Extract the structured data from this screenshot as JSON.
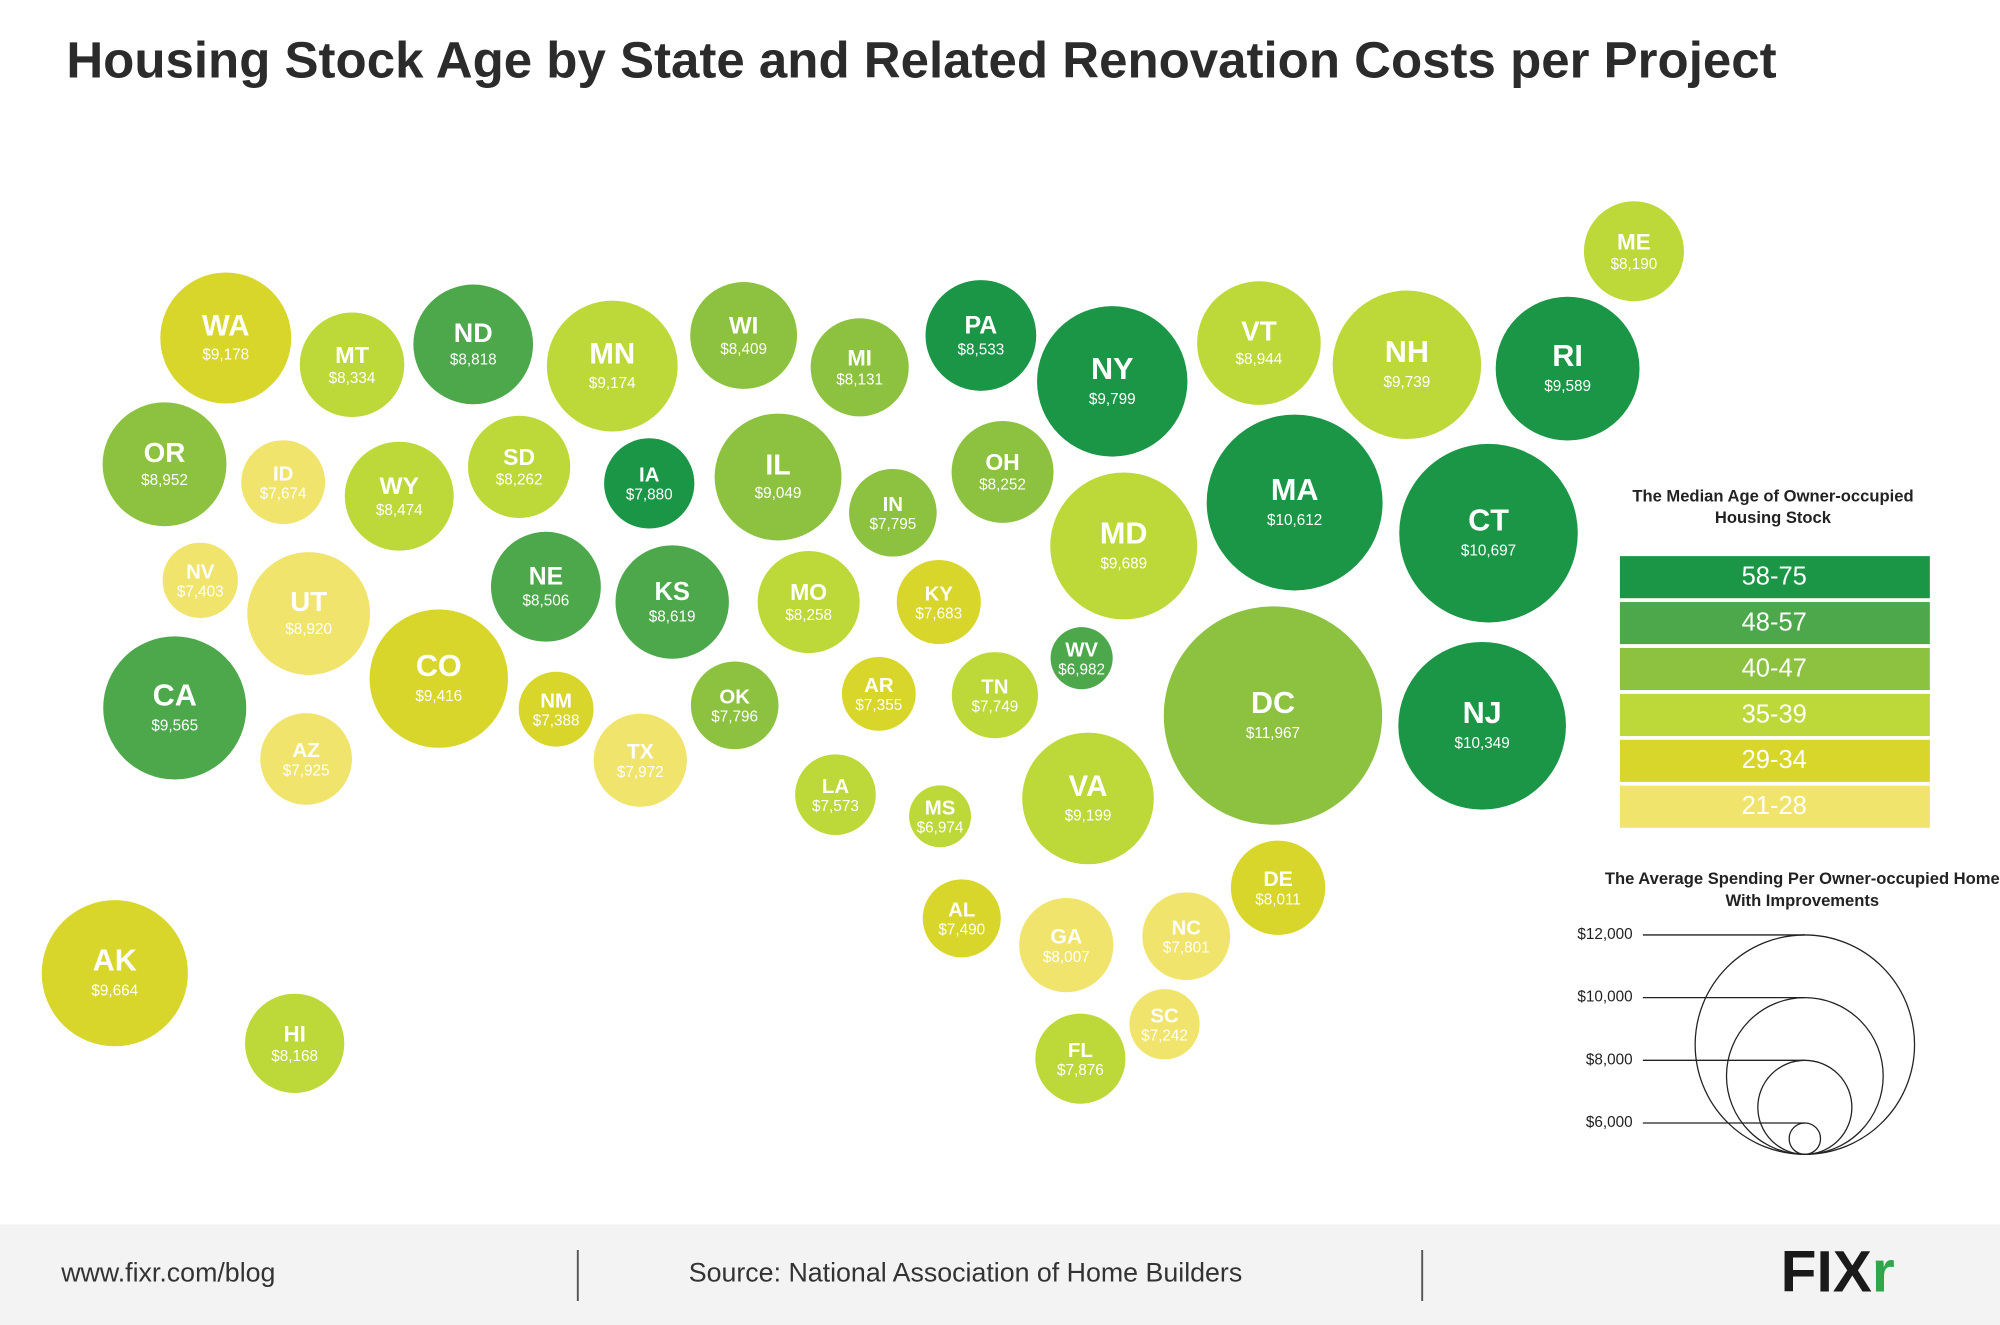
{
  "chart_data": {
    "type": "bubble",
    "title": "Housing Stock Age by State and Related Renovation Costs per Project",
    "categories": [
      "WA",
      "MT",
      "ND",
      "MN",
      "WI",
      "MI",
      "PA",
      "NY",
      "VT",
      "NH",
      "RI",
      "ME",
      "OR",
      "ID",
      "WY",
      "SD",
      "IA",
      "IL",
      "IN",
      "OH",
      "MD",
      "MA",
      "CT",
      "NV",
      "UT",
      "NE",
      "KS",
      "MO",
      "KY",
      "WV",
      "CA",
      "CO",
      "NM",
      "OK",
      "AR",
      "TN",
      "DC",
      "NJ",
      "AZ",
      "TX",
      "LA",
      "MS",
      "VA",
      "DE",
      "AL",
      "GA",
      "NC",
      "AK",
      "HI",
      "SC",
      "FL"
    ],
    "values": [
      9178,
      8334,
      8818,
      9174,
      8409,
      8131,
      8533,
      9799,
      8944,
      9739,
      9589,
      8190,
      8952,
      7674,
      8474,
      8262,
      7880,
      9049,
      7795,
      8252,
      9689,
      10612,
      10697,
      7403,
      8920,
      8506,
      8619,
      8258,
      7683,
      6982,
      9565,
      9416,
      7388,
      7796,
      7355,
      7749,
      11967,
      10349,
      7925,
      7972,
      7573,
      6974,
      9199,
      8011,
      7490,
      8007,
      7801,
      9664,
      8168,
      7242,
      7876
    ],
    "value_labels": [
      "$9,178",
      "$8,334",
      "$8,818",
      "$9,174",
      "$8,409",
      "$8,131",
      "$8,533",
      "$9,799",
      "$8,944",
      "$9,739",
      "$9,589",
      "$8,190",
      "$8,952",
      "$7,674",
      "$8,474",
      "$8,262",
      "$7,880",
      "$9,049",
      "$7,795",
      "$8,252",
      "$9,689",
      "$10,612",
      "$10,697",
      "$7,403",
      "$8,920",
      "$8,506",
      "$8,619",
      "$8,258",
      "$7,683",
      "$6,982",
      "$9,565",
      "$9,416",
      "$7,388",
      "$7,796",
      "$7,355",
      "$7,749",
      "$11,967",
      "$10,349",
      "$7,925",
      "$7,972",
      "$7,573",
      "$6,974",
      "$9,199",
      "$8,011",
      "$7,490",
      "$8,007",
      "$7,801",
      "$9,664",
      "$8,168",
      "$7,242",
      "$7,876"
    ],
    "groups": [
      "29-34",
      "35-39",
      "48-57",
      "35-39",
      "40-47",
      "40-47",
      "58-75",
      "58-75",
      "35-39",
      "35-39",
      "58-75",
      "35-39",
      "40-47",
      "21-28",
      "35-39",
      "35-39",
      "58-75",
      "40-47",
      "40-47",
      "40-47",
      "35-39",
      "58-75",
      "58-75",
      "21-28",
      "21-28",
      "48-57",
      "48-57",
      "35-39",
      "29-34",
      "48-57",
      "48-57",
      "29-34",
      "29-34",
      "40-47",
      "29-34",
      "35-39",
      "40-47",
      "58-75",
      "21-28",
      "21-28",
      "35-39",
      "35-39",
      "35-39",
      "29-34",
      "29-34",
      "21-28",
      "21-28",
      "29-34",
      "35-39",
      "21-28",
      "35-39"
    ],
    "color_legend": {
      "title": "The Median Age of Owner-occupied Housing Stock",
      "labels": [
        "58-75",
        "48-57",
        "40-47",
        "35-39",
        "29-34",
        "21-28"
      ],
      "colors": [
        "#1b9647",
        "#4ca84b",
        "#8cc23f",
        "#bdd839",
        "#d8d52b",
        "#f1e46d"
      ]
    },
    "size_legend": {
      "title": "The Average Spending Per Owner-occupied Home With Improvements",
      "ticks": [
        {
          "value": 12000,
          "label": "$12,000"
        },
        {
          "value": 10000,
          "label": "$10,000"
        },
        {
          "value": 8000,
          "label": "$8,000"
        },
        {
          "value": 6000,
          "label": "$6,000"
        }
      ]
    }
  },
  "footer": {
    "url": "www.fixr.com/blog",
    "source": "Source: National Association of Home Builders",
    "logo": "FIX",
    "logo_accent": "r"
  }
}
